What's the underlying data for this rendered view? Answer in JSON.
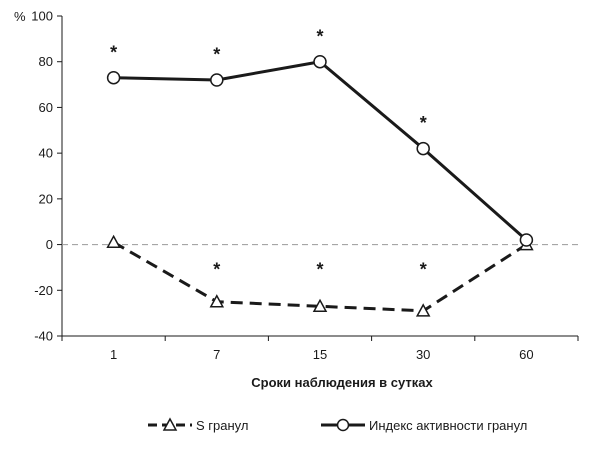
{
  "chart_data": {
    "type": "line",
    "categories": [
      "1",
      "7",
      "15",
      "30",
      "60"
    ],
    "xlabel": "Сроки наблюдения в сутках",
    "ylabel": "%",
    "ylim": [
      -40,
      100
    ],
    "yticks": [
      -40,
      -20,
      0,
      20,
      40,
      60,
      80,
      100
    ],
    "grid": false,
    "zero_line": "dashed",
    "legend_position": "bottom",
    "series": [
      {
        "name": "S гранул",
        "marker": "triangle",
        "line": "dashed",
        "values": [
          1,
          -25,
          -27,
          -29,
          0
        ]
      },
      {
        "name": "Индекс активности гранул",
        "marker": "circle",
        "line": "solid",
        "values": [
          73,
          72,
          80,
          42,
          2
        ]
      }
    ],
    "annotations": [
      {
        "text": "*",
        "x": "1",
        "y": 85
      },
      {
        "text": "*",
        "x": "7",
        "y": 84
      },
      {
        "text": "*",
        "x": "15",
        "y": 92
      },
      {
        "text": "*",
        "x": "30",
        "y": 54
      },
      {
        "text": "*",
        "x": "7",
        "y": -10
      },
      {
        "text": "*",
        "x": "15",
        "y": -10
      },
      {
        "text": "*",
        "x": "30",
        "y": -10
      }
    ]
  }
}
